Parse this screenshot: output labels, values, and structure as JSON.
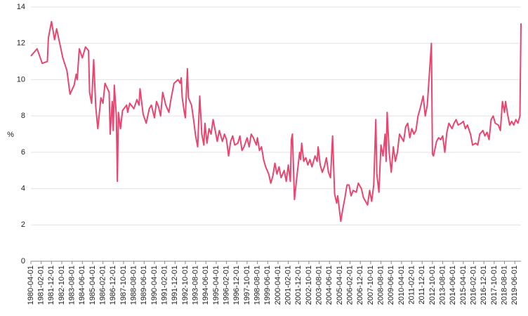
{
  "chart_data": {
    "type": "line",
    "y_label": "%",
    "color": "#e8456f",
    "grid": true,
    "ylim": [
      0,
      14
    ],
    "yticks": [
      0,
      2,
      4,
      6,
      8,
      10,
      12,
      14
    ],
    "xlim": [
      "1980-04-01",
      "2019-12-01"
    ],
    "xticks": [
      "1980-04-01",
      "1981-02-01",
      "1981-12-01",
      "1982-10-01",
      "1983-08-01",
      "1984-06-01",
      "1985-04-01",
      "1986-02-01",
      "1986-12-01",
      "1987-10-01",
      "1988-08-01",
      "1989-06-01",
      "1990-04-01",
      "1991-02-01",
      "1991-12-01",
      "1992-10-01",
      "1993-08-01",
      "1994-06-01",
      "1995-04-01",
      "1996-02-01",
      "1996-12-01",
      "1997-10-01",
      "1998-08-01",
      "1999-06-01",
      "2000-04-01",
      "2001-02-01",
      "2001-12-01",
      "2002-10-01",
      "2003-08-01",
      "2004-06-01",
      "2005-04-01",
      "2006-02-01",
      "2006-12-01",
      "2007-10-01",
      "2008-08-01",
      "2009-06-01",
      "2010-04-01",
      "2011-02-01",
      "2011-12-01",
      "2012-10-01",
      "2013-08-01",
      "2014-06-01",
      "2015-04-01",
      "2016-02-01",
      "2016-12-01",
      "2017-10-01",
      "2018-08-01",
      "2019-06-01"
    ],
    "x": [
      "1980-04-01",
      "1980-10-01",
      "1981-03-01",
      "1981-08-01",
      "1981-09-01",
      "1981-12-01",
      "1982-03-01",
      "1982-05-01",
      "1982-08-01",
      "1982-11-01",
      "1983-03-01",
      "1983-06-01",
      "1983-10-01",
      "1983-12-01",
      "1984-01-01",
      "1984-03-01",
      "1984-06-01",
      "1984-09-01",
      "1984-12-01",
      "1985-01-01",
      "1985-03-01",
      "1985-05-01",
      "1985-07-01",
      "1985-09-01",
      "1985-12-01",
      "1986-02-01",
      "1986-04-01",
      "1986-08-01",
      "1986-09-01",
      "1986-11-01",
      "1986-12-01",
      "1987-01-01",
      "1987-03-01",
      "1987-04-01",
      "1987-05-01",
      "1987-07-01",
      "1987-09-01",
      "1988-01-01",
      "1988-02-01",
      "1988-04-01",
      "1988-08-01",
      "1988-11-01",
      "1989-01-01",
      "1989-02-01",
      "1989-05-01",
      "1989-08-01",
      "1989-11-01",
      "1990-01-01",
      "1990-04-01",
      "1990-06-01",
      "1990-08-01",
      "1990-10-01",
      "1990-12-01",
      "1991-03-01",
      "1991-06-01",
      "1991-08-01",
      "1991-11-01",
      "1992-03-01",
      "1992-05-01",
      "1992-06-01",
      "1992-07-01",
      "1992-09-01",
      "1992-10-01",
      "1992-12-01",
      "1993-01-01",
      "1993-04-01",
      "1993-06-01",
      "1993-08-01",
      "1993-10-01",
      "1993-12-01",
      "1994-02-01",
      "1994-04-01",
      "1994-05-01",
      "1994-07-01",
      "1994-09-01",
      "1994-11-01",
      "1995-01-01",
      "1995-03-01",
      "1995-05-01",
      "1995-07-01",
      "1995-10-01",
      "1995-12-01",
      "1996-02-01",
      "1996-04-01",
      "1996-06-01",
      "1996-08-01",
      "1996-10-01",
      "1997-01-01",
      "1997-03-01",
      "1997-05-01",
      "1997-07-01",
      "1997-10-01",
      "1997-12-01",
      "1998-02-01",
      "1998-04-01",
      "1998-07-01",
      "1998-08-01",
      "1998-10-01",
      "1998-12-01",
      "1999-02-01",
      "1999-04-01",
      "1999-07-01",
      "1999-09-01",
      "1999-11-01",
      "2000-01-01",
      "2000-03-01",
      "2000-05-01",
      "2000-07-01",
      "2000-10-01",
      "2000-12-01",
      "2001-02-01",
      "2001-04-01",
      "2001-05-01",
      "2001-06-01",
      "2001-08-01",
      "2001-10-01",
      "2002-01-01",
      "2002-02-01",
      "2002-03-01",
      "2002-05-01",
      "2002-07-01",
      "2002-09-01",
      "2002-11-01",
      "2003-01-01",
      "2003-04-01",
      "2003-06-01",
      "2003-07-01",
      "2003-09-01",
      "2003-11-01",
      "2004-01-01",
      "2004-03-01",
      "2004-05-01",
      "2004-07-01",
      "2004-09-01",
      "2004-11-01",
      "2005-01-01",
      "2005-02-01",
      "2005-05-01",
      "2005-07-01",
      "2005-09-01",
      "2005-11-01",
      "2006-01-01",
      "2006-03-01",
      "2006-05-01",
      "2006-08-01",
      "2006-10-01",
      "2007-01-01",
      "2007-03-01",
      "2007-05-01",
      "2007-07-01",
      "2007-09-01",
      "2007-11-01",
      "2008-01-01",
      "2008-03-01",
      "2008-04-01",
      "2008-06-01",
      "2008-08-01",
      "2008-10-01",
      "2008-12-01",
      "2009-01-01",
      "2009-02-01",
      "2009-04-01",
      "2009-06-01",
      "2009-08-01",
      "2009-10-01",
      "2009-12-01",
      "2010-02-01",
      "2010-04-01",
      "2010-06-01",
      "2010-08-01",
      "2010-10-01",
      "2010-12-01",
      "2011-02-01",
      "2011-04-01",
      "2011-06-01",
      "2011-08-01",
      "2011-10-01",
      "2012-01-01",
      "2012-03-01",
      "2012-05-01",
      "2012-07-01",
      "2012-09-01",
      "2012-10-01",
      "2012-11-01",
      "2013-02-01",
      "2013-04-01",
      "2013-06-01",
      "2013-08-01",
      "2013-10-01",
      "2013-12-01",
      "2014-02-01",
      "2014-05-01",
      "2014-07-01",
      "2014-09-01",
      "2014-11-01",
      "2015-02-01",
      "2015-04-01",
      "2015-06-01",
      "2015-08-01",
      "2015-11-01",
      "2016-01-01",
      "2016-04-01",
      "2016-06-01",
      "2016-08-01",
      "2016-11-01",
      "2017-01-01",
      "2017-03-01",
      "2017-05-01",
      "2017-07-01",
      "2017-09-01",
      "2017-11-01",
      "2018-02-01",
      "2018-04-01",
      "2018-06-01",
      "2018-08-01",
      "2018-09-01",
      "2018-11-01",
      "2019-01-01",
      "2019-03-01",
      "2019-05-01",
      "2019-07-01",
      "2019-09-01",
      "2019-11-01",
      "2019-12-01"
    ],
    "values": [
      11.3,
      11.7,
      10.9,
      11.0,
      12.3,
      13.2,
      12.2,
      12.8,
      12.0,
      11.2,
      10.5,
      9.2,
      9.7,
      10.3,
      10.0,
      11.7,
      11.2,
      11.8,
      11.6,
      9.3,
      8.7,
      11.1,
      8.5,
      7.3,
      9.0,
      8.7,
      9.8,
      9.3,
      7.0,
      8.8,
      7.2,
      9.7,
      8.0,
      4.4,
      8.2,
      7.3,
      8.3,
      8.6,
      8.2,
      8.7,
      8.4,
      8.9,
      8.6,
      9.5,
      8.1,
      7.6,
      8.4,
      8.6,
      7.9,
      8.8,
      8.5,
      8.0,
      9.3,
      8.6,
      8.2,
      8.9,
      9.8,
      10.0,
      9.8,
      10.1,
      9.0,
      8.2,
      7.9,
      10.6,
      9.0,
      8.6,
      7.8,
      6.9,
      6.3,
      9.1,
      7.0,
      6.4,
      7.6,
      6.5,
      7.3,
      7.0,
      7.8,
      7.2,
      6.6,
      7.2,
      6.6,
      7.0,
      6.7,
      5.8,
      6.6,
      6.9,
      6.4,
      6.5,
      6.9,
      6.1,
      6.3,
      6.8,
      6.3,
      7.0,
      6.8,
      6.4,
      6.8,
      6.1,
      6.3,
      5.6,
      5.2,
      4.8,
      4.3,
      4.7,
      5.4,
      4.8,
      5.2,
      4.6,
      5.0,
      4.4,
      5.3,
      4.4,
      6.7,
      7.0,
      3.4,
      4.5,
      6.0,
      5.6,
      6.5,
      5.5,
      5.7,
      5.3,
      5.6,
      5.2,
      5.8,
      5.5,
      6.3,
      5.3,
      4.9,
      5.2,
      5.7,
      4.9,
      4.6,
      6.9,
      3.7,
      3.2,
      3.6,
      2.2,
      2.9,
      3.5,
      4.2,
      4.2,
      3.6,
      3.9,
      3.8,
      4.3,
      4.0,
      3.5,
      3.3,
      3.1,
      3.9,
      3.3,
      4.2,
      7.8,
      4.8,
      3.8,
      6.4,
      5.8,
      7.0,
      5.5,
      8.2,
      6.0,
      4.9,
      6.3,
      5.5,
      6.0,
      7.0,
      6.8,
      6.6,
      7.4,
      7.6,
      6.8,
      7.3,
      7.0,
      7.2,
      8.0,
      8.4,
      9.1,
      8.0,
      8.6,
      10.3,
      12.0,
      5.9,
      5.8,
      6.6,
      6.8,
      6.7,
      6.9,
      6.0,
      7.1,
      7.6,
      7.3,
      7.6,
      7.8,
      7.5,
      7.6,
      7.7,
      7.3,
      7.5,
      7.0,
      6.4,
      6.5,
      6.4,
      7.0,
      7.2,
      6.9,
      7.1,
      6.7,
      7.8,
      8.0,
      7.6,
      7.5,
      7.2,
      8.8,
      8.2,
      8.8,
      8.1,
      7.5,
      7.7,
      7.5,
      7.8,
      7.6,
      8.0,
      13.1
    ]
  }
}
